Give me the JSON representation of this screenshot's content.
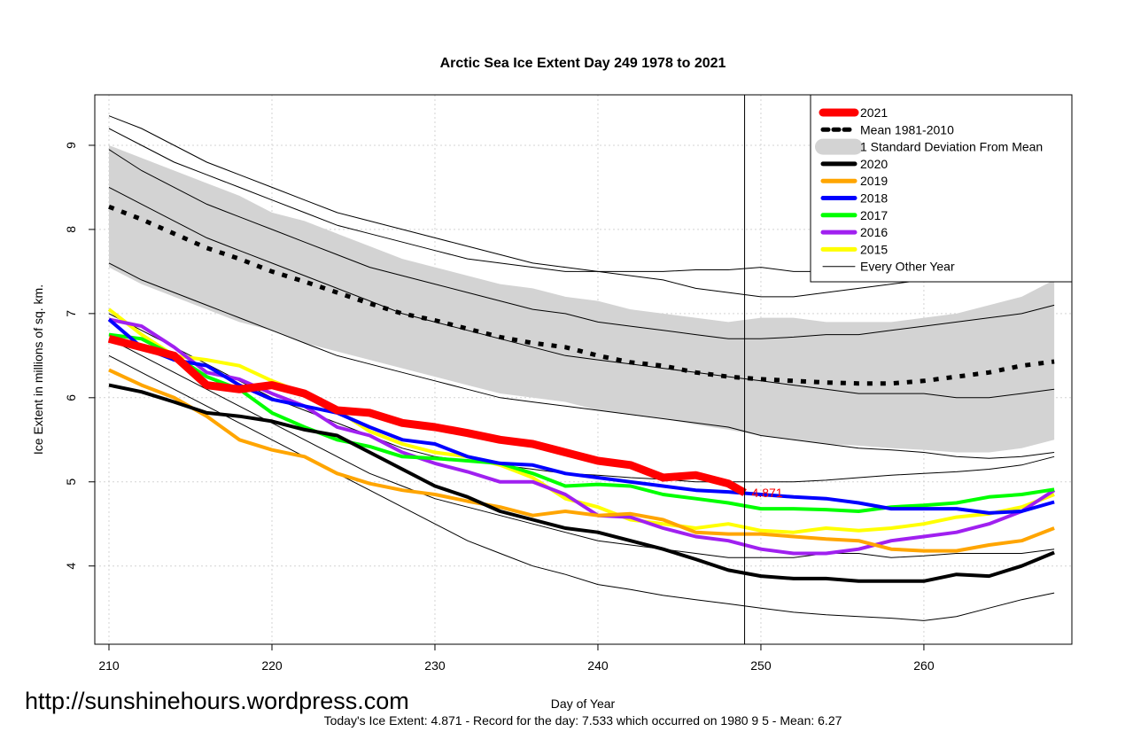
{
  "chart_data": {
    "type": "line",
    "title": "Arctic Sea Ice Extent Day 249 1978 to 2021",
    "xlabel": "Day of Year",
    "ylabel": "Ice Extent in millions of sq. km.",
    "watermark": "http://sunshinehours.wordpress.com",
    "footer": "Today's Ice Extent: 4.871  - Record for the day: 7.533 which occurred on 1980 9 5  - Mean: 6.27",
    "xlim": [
      209.13,
      269.08
    ],
    "ylim": [
      3.07,
      9.6
    ],
    "xticks": [
      210,
      220,
      230,
      240,
      250,
      260
    ],
    "yticks": [
      4,
      5,
      6,
      7,
      8,
      9
    ],
    "grid": true,
    "legend": "top-right",
    "vline": 249,
    "x": [
      210,
      212,
      214,
      216,
      218,
      220,
      222,
      224,
      226,
      228,
      230,
      232,
      234,
      236,
      238,
      240,
      242,
      244,
      246,
      248,
      250,
      252,
      254,
      256,
      258,
      260,
      262,
      264,
      266,
      268
    ],
    "highlight": {
      "name": "2021",
      "color": "#ff0000",
      "x": [
        210,
        212,
        214,
        216,
        218,
        220,
        222,
        224,
        226,
        228,
        230,
        232,
        234,
        236,
        238,
        240,
        242,
        244,
        246,
        248,
        249
      ],
      "values": [
        6.7,
        6.6,
        6.5,
        6.15,
        6.1,
        6.15,
        6.05,
        5.85,
        5.82,
        5.7,
        5.65,
        5.58,
        5.5,
        5.45,
        5.35,
        5.25,
        5.2,
        5.05,
        5.08,
        4.98,
        4.871
      ]
    },
    "mean": {
      "name": "Mean 1981-2010",
      "color": "#000000",
      "values": [
        8.27,
        8.12,
        7.95,
        7.78,
        7.65,
        7.5,
        7.38,
        7.25,
        7.12,
        7.0,
        6.92,
        6.82,
        6.72,
        6.65,
        6.6,
        6.5,
        6.42,
        6.38,
        6.3,
        6.25,
        6.22,
        6.2,
        6.18,
        6.17,
        6.17,
        6.2,
        6.25,
        6.3,
        6.38,
        6.43
      ]
    },
    "band": {
      "name": "1 Standard Deviation From Mean",
      "color": "#d3d3d3",
      "upper": [
        9.0,
        8.85,
        8.7,
        8.55,
        8.4,
        8.2,
        8.1,
        7.95,
        7.8,
        7.65,
        7.55,
        7.45,
        7.35,
        7.3,
        7.2,
        7.15,
        7.05,
        7.0,
        6.95,
        6.9,
        6.95,
        6.95,
        6.9,
        6.9,
        6.9,
        6.95,
        7.0,
        7.1,
        7.2,
        7.4
      ],
      "lower": [
        7.55,
        7.35,
        7.2,
        7.05,
        6.9,
        6.8,
        6.65,
        6.55,
        6.45,
        6.35,
        6.25,
        6.15,
        6.05,
        6.0,
        5.95,
        5.85,
        5.8,
        5.75,
        5.68,
        5.62,
        5.55,
        5.5,
        5.45,
        5.43,
        5.4,
        5.38,
        5.35,
        5.35,
        5.4,
        5.5
      ]
    },
    "series": [
      {
        "name": "2020",
        "color": "#000000",
        "values": [
          6.15,
          6.07,
          5.95,
          5.82,
          5.78,
          5.72,
          5.62,
          5.55,
          5.35,
          5.15,
          4.95,
          4.82,
          4.65,
          4.55,
          4.45,
          4.4,
          4.3,
          4.2,
          4.08,
          3.95,
          3.88,
          3.85,
          3.85,
          3.82,
          3.82,
          3.82,
          3.9,
          3.88,
          4.0,
          4.16
        ]
      },
      {
        "name": "2019",
        "color": "#ffa500",
        "values": [
          6.33,
          6.15,
          6.0,
          5.78,
          5.5,
          5.38,
          5.3,
          5.1,
          4.98,
          4.9,
          4.85,
          4.77,
          4.7,
          4.6,
          4.65,
          4.6,
          4.62,
          4.55,
          4.4,
          4.38,
          4.38,
          4.35,
          4.32,
          4.3,
          4.2,
          4.18,
          4.18,
          4.25,
          4.3,
          4.45
        ]
      },
      {
        "name": "2018",
        "color": "#0000ff",
        "values": [
          6.93,
          6.6,
          6.45,
          6.38,
          6.15,
          5.98,
          5.9,
          5.82,
          5.65,
          5.5,
          5.45,
          5.3,
          5.22,
          5.2,
          5.1,
          5.05,
          5.0,
          4.95,
          4.9,
          4.88,
          4.85,
          4.82,
          4.8,
          4.75,
          4.68,
          4.68,
          4.68,
          4.63,
          4.65,
          4.76
        ]
      },
      {
        "name": "2017",
        "color": "#00ff00",
        "values": [
          6.75,
          6.7,
          6.5,
          6.25,
          6.1,
          5.82,
          5.65,
          5.5,
          5.42,
          5.3,
          5.28,
          5.25,
          5.22,
          5.1,
          4.95,
          4.97,
          4.95,
          4.85,
          4.8,
          4.75,
          4.68,
          4.68,
          4.67,
          4.65,
          4.7,
          4.72,
          4.75,
          4.82,
          4.85,
          4.91
        ]
      },
      {
        "name": "2016",
        "color": "#a020f0",
        "values": [
          6.93,
          6.85,
          6.6,
          6.3,
          6.22,
          6.05,
          5.9,
          5.65,
          5.55,
          5.35,
          5.22,
          5.12,
          5.0,
          5.0,
          4.85,
          4.6,
          4.58,
          4.45,
          4.35,
          4.3,
          4.2,
          4.15,
          4.15,
          4.2,
          4.3,
          4.35,
          4.4,
          4.5,
          4.65,
          4.9
        ]
      },
      {
        "name": "2015",
        "color": "#ffff00",
        "values": [
          7.05,
          6.75,
          6.5,
          6.45,
          6.38,
          6.2,
          6.05,
          5.85,
          5.6,
          5.45,
          5.35,
          5.3,
          5.2,
          5.05,
          4.8,
          4.7,
          4.55,
          4.5,
          4.45,
          4.5,
          4.42,
          4.4,
          4.45,
          4.42,
          4.45,
          4.5,
          4.58,
          4.62,
          4.7,
          4.85
        ]
      }
    ],
    "other_years": {
      "name": "Every Other Year",
      "color": "#000000",
      "lines": [
        [
          9.35,
          9.2,
          9.0,
          8.8,
          8.65,
          8.5,
          8.35,
          8.2,
          8.1,
          8.0,
          7.9,
          7.8,
          7.7,
          7.6,
          7.55,
          7.5,
          7.45,
          7.4,
          7.3,
          7.25,
          7.2,
          7.2,
          7.25,
          7.3,
          7.35,
          7.4,
          7.45,
          7.55,
          7.7,
          7.9
        ],
        [
          9.2,
          9.0,
          8.8,
          8.65,
          8.5,
          8.35,
          8.2,
          8.05,
          7.95,
          7.85,
          7.75,
          7.65,
          7.6,
          7.55,
          7.5,
          7.5,
          7.5,
          7.5,
          7.52,
          7.52,
          7.55,
          7.5,
          7.5,
          7.5,
          7.5,
          7.5,
          7.45,
          7.45,
          7.5,
          7.5
        ],
        [
          8.95,
          8.7,
          8.5,
          8.3,
          8.15,
          8.0,
          7.85,
          7.7,
          7.55,
          7.45,
          7.35,
          7.25,
          7.15,
          7.05,
          7.0,
          6.9,
          6.85,
          6.8,
          6.75,
          6.7,
          6.7,
          6.72,
          6.75,
          6.75,
          6.8,
          6.85,
          6.9,
          6.95,
          7.0,
          7.1
        ],
        [
          8.5,
          8.3,
          8.1,
          7.9,
          7.75,
          7.6,
          7.45,
          7.3,
          7.15,
          7.0,
          6.9,
          6.8,
          6.7,
          6.6,
          6.5,
          6.45,
          6.4,
          6.35,
          6.3,
          6.25,
          6.2,
          6.15,
          6.1,
          6.05,
          6.05,
          6.05,
          6.0,
          6.0,
          6.05,
          6.1
        ],
        [
          7.6,
          7.4,
          7.25,
          7.1,
          6.95,
          6.8,
          6.65,
          6.5,
          6.4,
          6.3,
          6.2,
          6.1,
          6.0,
          5.95,
          5.9,
          5.85,
          5.8,
          5.75,
          5.7,
          5.65,
          5.55,
          5.5,
          5.45,
          5.4,
          5.38,
          5.35,
          5.3,
          5.28,
          5.3,
          5.35
        ],
        [
          7.0,
          6.8,
          6.6,
          6.4,
          6.2,
          6.0,
          5.85,
          5.7,
          5.55,
          5.4,
          5.3,
          5.25,
          5.2,
          5.15,
          5.1,
          5.08,
          5.05,
          5.03,
          5.0,
          5.0,
          5.0,
          5.0,
          5.02,
          5.05,
          5.08,
          5.1,
          5.12,
          5.15,
          5.2,
          5.3
        ],
        [
          6.7,
          6.5,
          6.3,
          6.1,
          5.9,
          5.7,
          5.5,
          5.3,
          5.1,
          4.95,
          4.8,
          4.7,
          4.6,
          4.5,
          4.4,
          4.3,
          4.25,
          4.2,
          4.15,
          4.1,
          4.1,
          4.1,
          4.15,
          4.15,
          4.1,
          4.12,
          4.15,
          4.15,
          4.15,
          4.2
        ],
        [
          6.5,
          6.3,
          6.1,
          5.9,
          5.7,
          5.5,
          5.3,
          5.1,
          4.9,
          4.7,
          4.5,
          4.3,
          4.15,
          4.0,
          3.9,
          3.78,
          3.72,
          3.65,
          3.6,
          3.55,
          3.5,
          3.45,
          3.42,
          3.4,
          3.38,
          3.35,
          3.4,
          3.5,
          3.6,
          3.68
        ]
      ]
    }
  }
}
